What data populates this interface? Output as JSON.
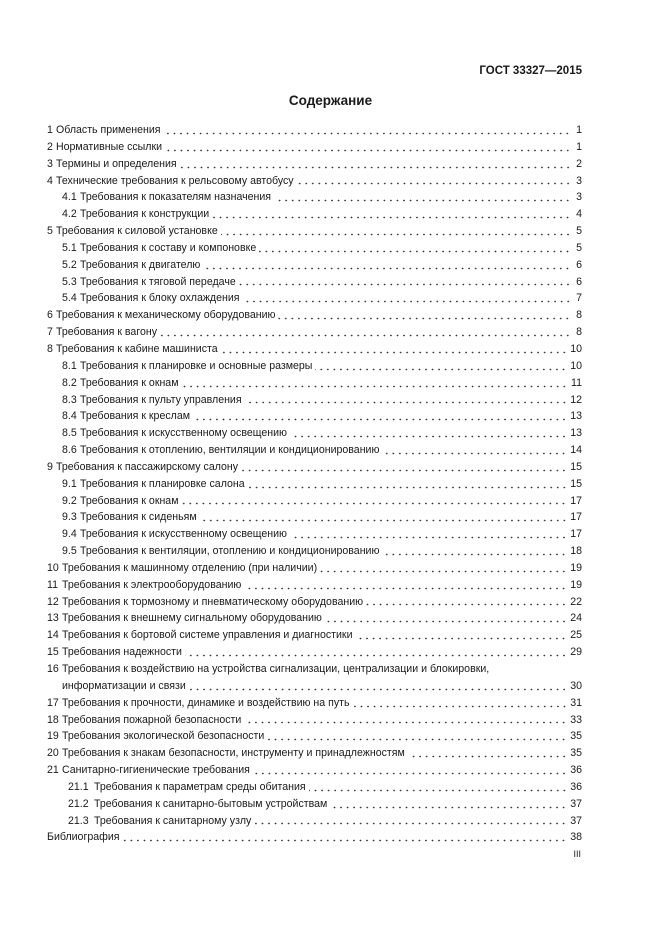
{
  "header": {
    "doc_code": "ГОСТ 33327—2015"
  },
  "title": "Содержание",
  "toc": [
    {
      "num": "1",
      "text": "Область применения",
      "page": "1",
      "level": 1
    },
    {
      "num": "2",
      "text": "Нормативные ссылки",
      "page": "1",
      "level": 1
    },
    {
      "num": "3",
      "text": "Термины и определения",
      "page": "2",
      "level": 1
    },
    {
      "num": "4",
      "text": "Технические требования к рельсовому автобусу",
      "page": "3",
      "level": 1
    },
    {
      "num": "4.1",
      "text": "Требования к показателям назначения",
      "page": "3",
      "level": 2
    },
    {
      "num": "4.2",
      "text": "Требования к конструкции",
      "page": "4",
      "level": 2
    },
    {
      "num": "5",
      "text": "Требования к силовой установке",
      "page": "5",
      "level": 1
    },
    {
      "num": "5.1",
      "text": "Требования к составу и компоновке",
      "page": "5",
      "level": 2
    },
    {
      "num": "5.2",
      "text": "Требования к двигателю",
      "page": "6",
      "level": 2
    },
    {
      "num": "5.3",
      "text": "Требования к тяговой передаче",
      "page": "6",
      "level": 2
    },
    {
      "num": "5.4",
      "text": "Требования к блоку охлаждения",
      "page": "7",
      "level": 2
    },
    {
      "num": "6",
      "text": "Требования к механическому оборудованию",
      "page": "8",
      "level": 1
    },
    {
      "num": "7",
      "text": "Требования к вагону",
      "page": "8",
      "level": 1
    },
    {
      "num": "8",
      "text": "Требования к кабине машиниста",
      "page": "10",
      "level": 1
    },
    {
      "num": "8.1",
      "text": "Требования к планировке и основные размеры",
      "page": "10",
      "level": 2
    },
    {
      "num": "8.2",
      "text": "Требования к окнам",
      "page": "11",
      "level": 2
    },
    {
      "num": "8.3",
      "text": "Требования к пульту управления",
      "page": "12",
      "level": 2
    },
    {
      "num": "8.4",
      "text": "Требования к креслам",
      "page": "13",
      "level": 2
    },
    {
      "num": "8.5",
      "text": "Требования к искусственному освещению",
      "page": "13",
      "level": 2
    },
    {
      "num": "8.6",
      "text": "Требования к отоплению, вентиляции и кондиционированию",
      "page": "14",
      "level": 2
    },
    {
      "num": "9",
      "text": "Требования к пассажирскому салону",
      "page": "15",
      "level": 1
    },
    {
      "num": "9.1",
      "text": "Требования к планировке салона",
      "page": "15",
      "level": 2
    },
    {
      "num": "9.2",
      "text": "Требования к окнам",
      "page": "17",
      "level": 2
    },
    {
      "num": "9.3",
      "text": "Требования к сиденьям",
      "page": "17",
      "level": 2
    },
    {
      "num": "9.4",
      "text": "Требования к искусственному освещению",
      "page": "17",
      "level": 2
    },
    {
      "num": "9.5",
      "text": "Требования к вентиляции, отоплению и кондиционированию",
      "page": "18",
      "level": 2
    },
    {
      "num": "10",
      "text": "Требования к машинному отделению (при наличии)",
      "page": "19",
      "level": 1
    },
    {
      "num": "11",
      "text": "Требования к электрооборудованию",
      "page": "19",
      "level": 1
    },
    {
      "num": "12",
      "text": "Требования к тормозному и пневматическому оборудованию",
      "page": "22",
      "level": 1
    },
    {
      "num": "13",
      "text": "Требования к внешнему сигнальному оборудованию",
      "page": "24",
      "level": 1
    },
    {
      "num": "14",
      "text": "Требования к бортовой системе управления и диагностики",
      "page": "25",
      "level": 1
    },
    {
      "num": "15",
      "text": "Требования надежности",
      "page": "29",
      "level": 1
    },
    {
      "num": "16",
      "text": "Требования к воздействию на устройства сигнализации, централизации и блокировки,",
      "text_cont": "информатизации и связи",
      "page": "30",
      "level": 1
    },
    {
      "num": "17",
      "text": "Требования к прочности, динамике и воздействию на путь",
      "page": "31",
      "level": 1
    },
    {
      "num": "18",
      "text": "Требования пожарной безопасности",
      "page": "33",
      "level": 1
    },
    {
      "num": "19",
      "text": "Требования экологической безопасности",
      "page": "35",
      "level": 1
    },
    {
      "num": "20",
      "text": "Требования к знакам безопасности, инструменту и принадлежностям",
      "page": "35",
      "level": 1
    },
    {
      "num": "21",
      "text": "Санитарно-гигиенические требования",
      "page": "36",
      "level": 1
    },
    {
      "num": "21.1",
      "text": "Требования к параметрам среды обитания",
      "page": "36",
      "level": 2
    },
    {
      "num": "21.2",
      "text": "Требования к санитарно-бытовым устройствам",
      "page": "37",
      "level": 2
    },
    {
      "num": "21.3",
      "text": "Требования к санитарному узлу",
      "page": "37",
      "level": 2
    },
    {
      "num": "",
      "text": "Библиография",
      "page": "38",
      "level": 1
    }
  ],
  "footer": {
    "page_number": "III"
  }
}
